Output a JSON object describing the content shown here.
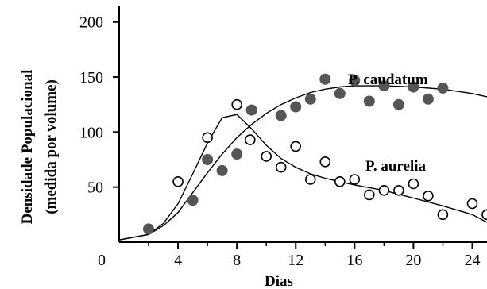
{
  "chart_data": {
    "type": "scatter",
    "xlabel": "Dias",
    "ylabel_line1": "Densidade Populacional",
    "ylabel_line2": "(medida por volume)",
    "x_ticks": [
      "4",
      "8",
      "12",
      "16",
      "20",
      "24"
    ],
    "y_ticks": [
      "50",
      "100",
      "150",
      "200"
    ],
    "origin_label": "0",
    "xlim": [
      0,
      25
    ],
    "ylim": [
      0,
      220
    ],
    "grid": false,
    "series": [
      {
        "name": "P. caudatum",
        "marker": "filled-circle",
        "color": "#555555",
        "points": [
          [
            2,
            12
          ],
          [
            5,
            38
          ],
          [
            6,
            75
          ],
          [
            7,
            65
          ],
          [
            8,
            80
          ],
          [
            9,
            120
          ],
          [
            11,
            115
          ],
          [
            12,
            123
          ],
          [
            13,
            130
          ],
          [
            14,
            148
          ],
          [
            15,
            135
          ],
          [
            16,
            147
          ],
          [
            17,
            128
          ],
          [
            18,
            142
          ],
          [
            19,
            125
          ],
          [
            20,
            141
          ],
          [
            21,
            130
          ],
          [
            22,
            140
          ]
        ],
        "trend": [
          [
            0,
            2
          ],
          [
            2,
            7
          ],
          [
            3,
            15
          ],
          [
            4,
            27
          ],
          [
            5,
            45
          ],
          [
            6,
            63
          ],
          [
            7,
            80
          ],
          [
            8,
            95
          ],
          [
            9,
            107
          ],
          [
            10,
            117
          ],
          [
            11,
            125
          ],
          [
            12,
            131
          ],
          [
            13,
            136
          ],
          [
            14,
            139
          ],
          [
            15,
            141
          ],
          [
            16,
            142
          ],
          [
            18,
            142
          ],
          [
            20,
            141
          ],
          [
            22,
            139
          ],
          [
            24,
            135
          ],
          [
            25,
            132
          ]
        ]
      },
      {
        "name": "P. aurelia",
        "marker": "open-circle",
        "color": "#000000",
        "points": [
          [
            4,
            55
          ],
          [
            6,
            95
          ],
          [
            8,
            125
          ],
          [
            8.9,
            93
          ],
          [
            10,
            78
          ],
          [
            11,
            68
          ],
          [
            12,
            87
          ],
          [
            13,
            57
          ],
          [
            14,
            73
          ],
          [
            15,
            55
          ],
          [
            16,
            57
          ],
          [
            17,
            43
          ],
          [
            18,
            47
          ],
          [
            19,
            47
          ],
          [
            20,
            53
          ],
          [
            21,
            42
          ],
          [
            22,
            25
          ],
          [
            24,
            35
          ],
          [
            25,
            25
          ]
        ],
        "trend": [
          [
            0,
            2
          ],
          [
            2,
            7
          ],
          [
            3,
            17
          ],
          [
            4,
            35
          ],
          [
            5,
            62
          ],
          [
            6,
            90
          ],
          [
            7,
            113
          ],
          [
            8,
            116
          ],
          [
            9,
            103
          ],
          [
            10,
            88
          ],
          [
            11,
            76
          ],
          [
            12,
            68
          ],
          [
            13,
            62
          ],
          [
            14,
            58
          ],
          [
            15,
            55
          ],
          [
            16,
            52
          ],
          [
            18,
            47
          ],
          [
            20,
            40
          ],
          [
            22,
            33
          ],
          [
            24,
            25
          ],
          [
            25,
            18
          ]
        ]
      }
    ]
  }
}
